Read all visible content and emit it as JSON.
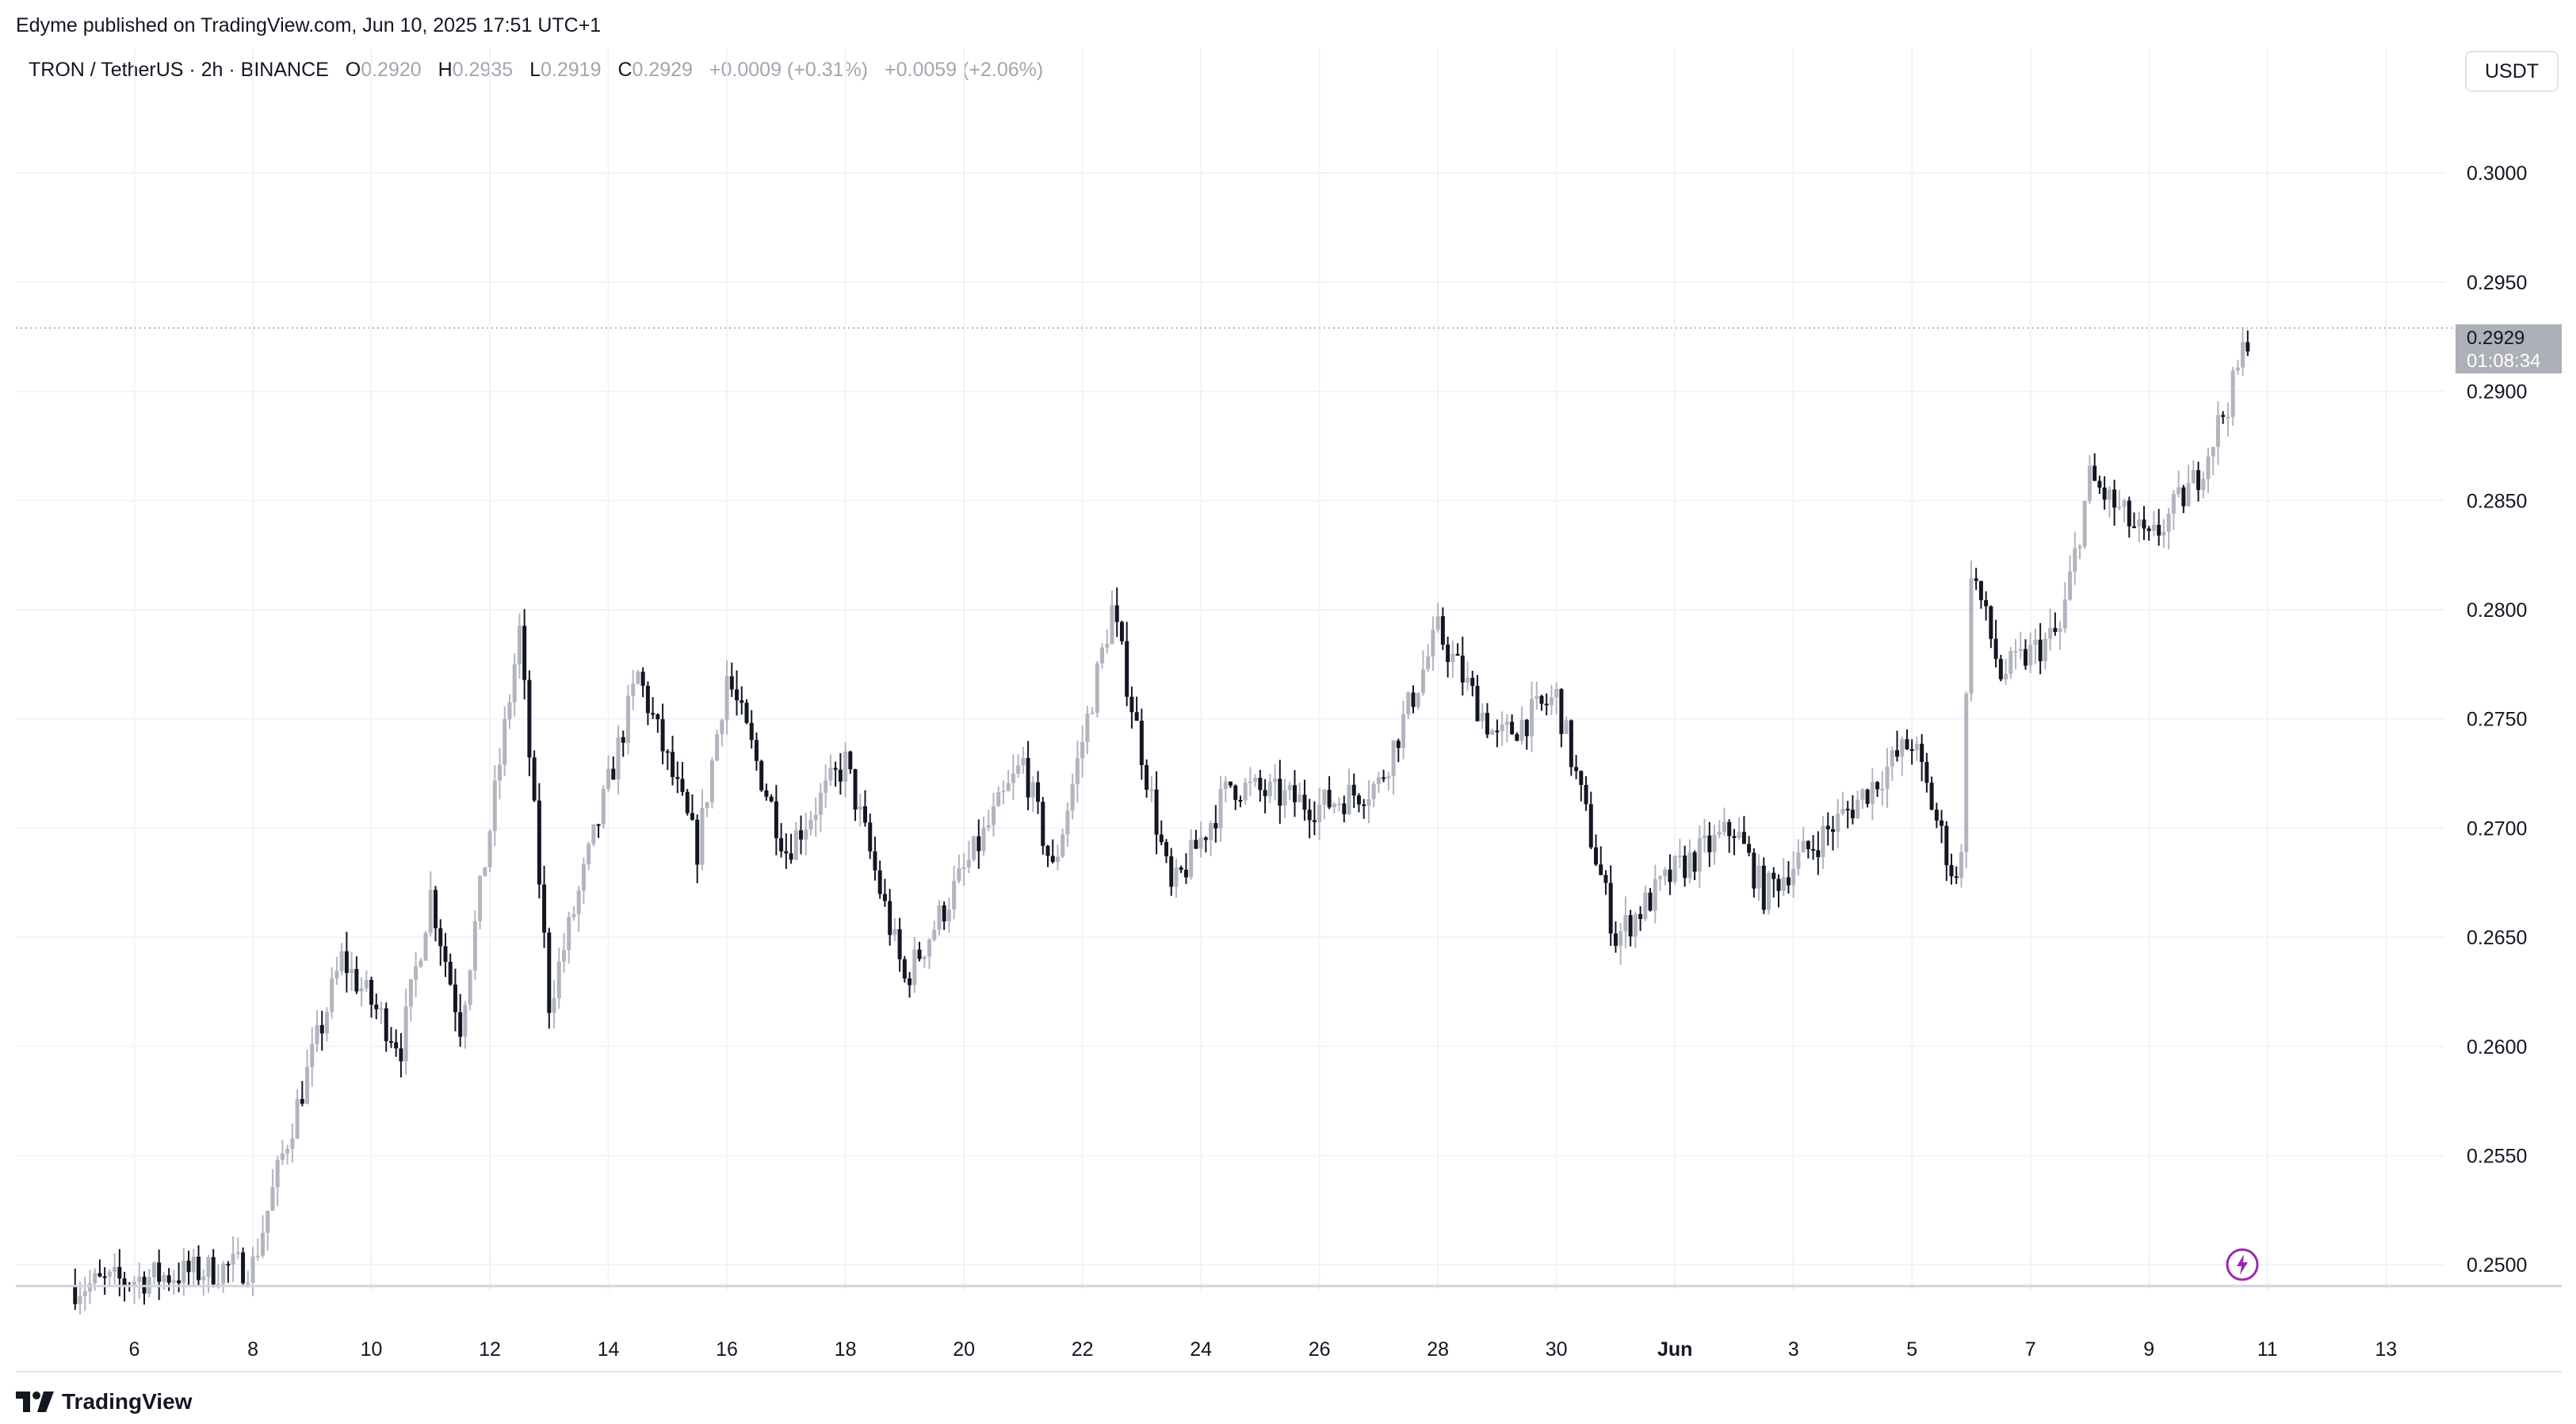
{
  "header": {
    "published": "Edyme published on TradingView.com, Jun 10, 2025 17:51 UTC+1"
  },
  "legend": {
    "symbol": "TRON / TetherUS · 2h · BINANCE",
    "open_label": "O",
    "open": "0.2920",
    "high_label": "H",
    "high": "0.2935",
    "low_label": "L",
    "low": "0.2919",
    "close_label": "C",
    "close": "0.2929",
    "change": "+0.0009 (+0.31%)",
    "change2": "+0.0059 (+2.06%)"
  },
  "currency": "USDT",
  "price_badge": {
    "price": "0.2929",
    "countdown": "01:08:34"
  },
  "footer": {
    "brand": "TradingView"
  },
  "colors": {
    "bull": "#b2b5be",
    "bear": "#131722",
    "grid": "#f0f3fa",
    "badge": "#aeb0b7",
    "alert": "#9c27b0"
  },
  "icons": {
    "alert": "lightning-alert-icon",
    "brand": "tradingview-logo-icon"
  },
  "chart_data": {
    "type": "candlestick",
    "title": "TRON / TetherUS · 2h · BINANCE",
    "y_ticks": [
      "0.2500",
      "0.2550",
      "0.2600",
      "0.2650",
      "0.2700",
      "0.2750",
      "0.2800",
      "0.2850",
      "0.2900",
      "0.2950",
      "0.3000"
    ],
    "ylim": [
      0.2491,
      0.3032
    ],
    "x_ticks": [
      "6",
      "8",
      "10",
      "12",
      "14",
      "16",
      "18",
      "20",
      "22",
      "24",
      "26",
      "28",
      "30",
      "Jun",
      "3",
      "5",
      "7",
      "9",
      "11",
      "13"
    ],
    "xlim": [
      "May 4, 2025",
      "Jun 14, 2025"
    ],
    "last_price": 0.2929,
    "grid": true,
    "keypoints": [
      {
        "date": "May 5",
        "price": 0.249
      },
      {
        "date": "May 8",
        "price": 0.25
      },
      {
        "date": "May 8.5",
        "price": 0.255
      },
      {
        "date": "May 9.5",
        "price": 0.264
      },
      {
        "date": "May 10.5",
        "price": 0.26
      },
      {
        "date": "May 11",
        "price": 0.267
      },
      {
        "date": "May 11.5",
        "price": 0.261
      },
      {
        "date": "May 12.5",
        "price": 0.279
      },
      {
        "date": "May 13",
        "price": 0.262
      },
      {
        "date": "May 14.5",
        "price": 0.277
      },
      {
        "date": "May 15.5",
        "price": 0.269
      },
      {
        "date": "May 16",
        "price": 0.277
      },
      {
        "date": "May 17",
        "price": 0.269
      },
      {
        "date": "May 18",
        "price": 0.273
      },
      {
        "date": "May 19",
        "price": 0.263
      },
      {
        "date": "May 20",
        "price": 0.268
      },
      {
        "date": "May 21",
        "price": 0.273
      },
      {
        "date": "May 21.5",
        "price": 0.268
      },
      {
        "date": "May 22.5",
        "price": 0.28
      },
      {
        "date": "May 23.5",
        "price": 0.267
      },
      {
        "date": "May 24.5",
        "price": 0.272
      },
      {
        "date": "May 26",
        "price": 0.271
      },
      {
        "date": "May 27",
        "price": 0.272
      },
      {
        "date": "May 28",
        "price": 0.279
      },
      {
        "date": "May 29",
        "price": 0.274
      },
      {
        "date": "May 30",
        "price": 0.276
      },
      {
        "date": "May 31",
        "price": 0.265
      },
      {
        "date": "Jun 1",
        "price": 0.268
      },
      {
        "date": "Jun 2",
        "price": 0.27
      },
      {
        "date": "Jun 2.5",
        "price": 0.267
      },
      {
        "date": "Jun 4",
        "price": 0.271
      },
      {
        "date": "Jun 5",
        "price": 0.274
      },
      {
        "date": "Jun 5.8",
        "price": 0.267
      },
      {
        "date": "Jun 6",
        "price": 0.282
      },
      {
        "date": "Jun 6.5",
        "price": 0.277
      },
      {
        "date": "Jun 7.5",
        "price": 0.279
      },
      {
        "date": "Jun 8",
        "price": 0.286
      },
      {
        "date": "Jun 9",
        "price": 0.283
      },
      {
        "date": "Jun 9.8",
        "price": 0.286
      },
      {
        "date": "Jun 10.4",
        "price": 0.29
      },
      {
        "date": "Jun 10.7",
        "price": 0.2929
      }
    ]
  }
}
